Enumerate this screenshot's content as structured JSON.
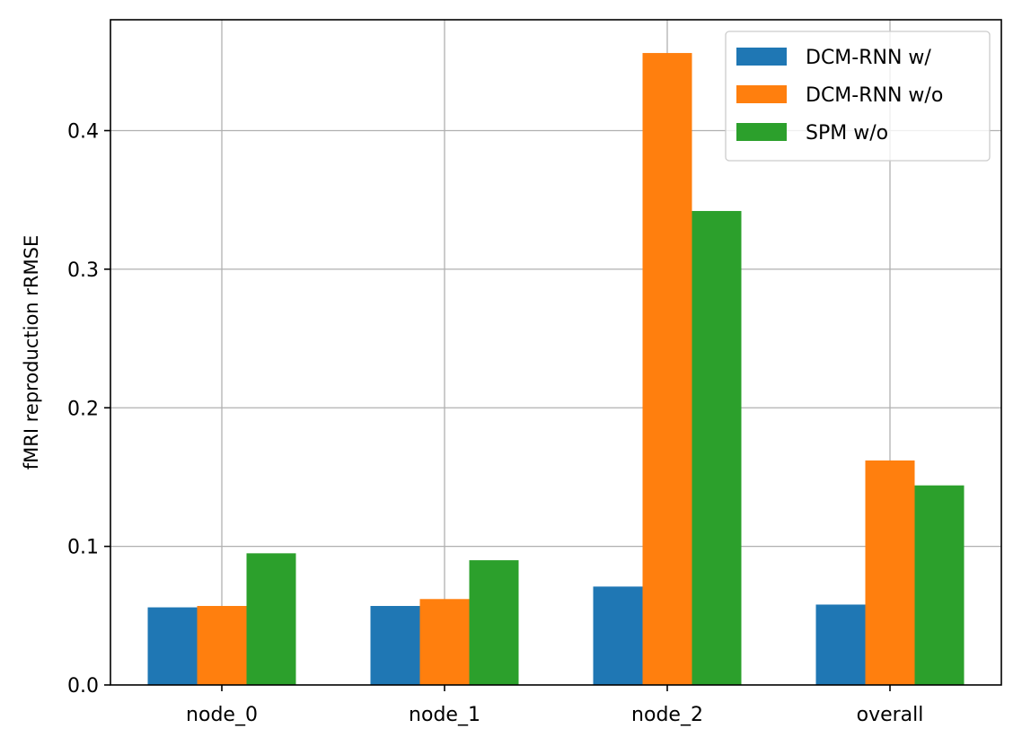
{
  "chart_data": {
    "type": "bar",
    "title": "",
    "xlabel": "",
    "ylabel": "fMRI reproduction rRMSE",
    "categories": [
      "node_0",
      "node_1",
      "node_2",
      "overall"
    ],
    "series": [
      {
        "name": "DCM-RNN w/",
        "color": "#1f77b4",
        "values": [
          0.056,
          0.057,
          0.071,
          0.058
        ]
      },
      {
        "name": "DCM-RNN w/o",
        "color": "#ff7f0e",
        "values": [
          0.057,
          0.062,
          0.456,
          0.162
        ]
      },
      {
        "name": "SPM w/o",
        "color": "#2ca02c",
        "values": [
          0.095,
          0.09,
          0.342,
          0.144
        ]
      }
    ],
    "ylim": [
      0,
      0.48
    ],
    "yticks": [
      0.0,
      0.1,
      0.2,
      0.3,
      0.4
    ],
    "ytick_labels": [
      "0.0",
      "0.1",
      "0.2",
      "0.3",
      "0.4"
    ],
    "grid": true,
    "legend_position": "top-right"
  }
}
